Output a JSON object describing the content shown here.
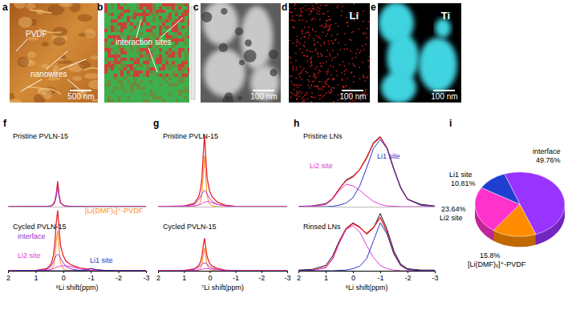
{
  "image_panels": [
    {
      "label": "a",
      "annotations": [
        "PVDF",
        "nanowires"
      ],
      "scale_bar": "500 nm"
    },
    {
      "label": "b",
      "annotations": [
        "interaction sites"
      ]
    },
    {
      "label": "c",
      "scale_bar": "100 nm"
    },
    {
      "label": "d",
      "element": "Li",
      "scale_bar": "100 nm"
    },
    {
      "label": "e",
      "element": "Ti",
      "scale_bar": "100 nm"
    }
  ],
  "chart_data": [
    {
      "type": "line",
      "panel_label": "f",
      "title": "Pristine PVLN-15",
      "tick_labels": false,
      "xlim": [
        2,
        -3
      ],
      "ylim": [
        0,
        100
      ],
      "x": [
        2,
        1,
        0.6,
        0.45,
        0.4,
        0.35,
        0.3,
        0.25,
        0.2,
        0.15,
        0.1,
        0,
        -0.1,
        -0.3,
        -0.6,
        -0.9,
        -1,
        -1.2,
        -1.5,
        -2,
        -3
      ],
      "series": [
        {
          "color": "#e8202a",
          "values": [
            0,
            0.3,
            0.5,
            1,
            2,
            4,
            8,
            18,
            34,
            16,
            6,
            2,
            1,
            0.5,
            0.3,
            0.2,
            0.2,
            0.2,
            0.1,
            0,
            0
          ]
        },
        {
          "color": "#9b2fc9",
          "values": [
            0,
            0.2,
            0.4,
            0.8,
            1.5,
            3,
            6,
            14,
            28,
            13,
            5,
            1.5,
            0.8,
            0.4,
            0.2,
            0.1,
            0.1,
            0.1,
            0,
            0,
            0
          ]
        }
      ]
    },
    {
      "type": "line",
      "title": "Cycled PVLN-15",
      "x_label": "⁶Li shift(ppm)",
      "tick_labels": "x",
      "xlim": [
        2,
        -3
      ],
      "xticks": [
        2,
        1,
        0,
        -1,
        -2,
        -3
      ],
      "ylim": [
        0,
        100
      ],
      "x": [
        2,
        1,
        0.6,
        0.45,
        0.4,
        0.35,
        0.3,
        0.25,
        0.2,
        0.15,
        0.1,
        0,
        -0.1,
        -0.3,
        -0.6,
        -0.9,
        -1,
        -1.2,
        -1.5,
        -2,
        -3
      ],
      "series": [
        {
          "color": "#e8202a",
          "values": [
            0,
            0.3,
            3,
            9.5,
            15.5,
            24,
            43,
            73,
            91,
            64.5,
            38,
            22.5,
            14.5,
            8.5,
            4,
            2.5,
            3.5,
            1.5,
            0.5,
            0,
            0
          ]
        },
        {
          "name": "[Li(DMF)ₓ]⁺-PVDF",
          "color": "#ff8c1a",
          "values": [
            0,
            0,
            0.5,
            1.5,
            3,
            7,
            20,
            45,
            60,
            35,
            12,
            3,
            1,
            0,
            0,
            0,
            0,
            0,
            0,
            0,
            0
          ]
        },
        {
          "name": "interface",
          "color": "#9b2fc9",
          "values": [
            0,
            0.3,
            2,
            6,
            10,
            14,
            19,
            23,
            25,
            23,
            19,
            12,
            6,
            2.5,
            0.5,
            0,
            0,
            0,
            0,
            0,
            0
          ]
        },
        {
          "name": "Li2 site",
          "color": "#e23bd6",
          "values": [
            0,
            0,
            0.5,
            2,
            2.5,
            3,
            4,
            5,
            6,
            6.5,
            7,
            7.5,
            7.5,
            6,
            3,
            1,
            0.5,
            0,
            0,
            0,
            0
          ]
        },
        {
          "name": "Li1 site",
          "color": "#2b35c8",
          "values": [
            0,
            0,
            0,
            0,
            0,
            0,
            0,
            0,
            0,
            0,
            0,
            0,
            0,
            0,
            0.5,
            1.5,
            3,
            1.5,
            0.5,
            0,
            0
          ]
        }
      ]
    },
    {
      "type": "line",
      "panel_label": "g",
      "title": "Pristine PVLN-15",
      "tick_labels": false,
      "xlim": [
        2,
        -3
      ],
      "ylim": [
        0,
        100
      ],
      "x": [
        2,
        1,
        0.6,
        0.45,
        0.4,
        0.35,
        0.3,
        0.25,
        0.2,
        0.15,
        0.1,
        0,
        -0.1,
        -0.3,
        -0.6,
        -0.9,
        -1,
        -1.5,
        -2,
        -3
      ],
      "series": [
        {
          "color": "#e8202a",
          "values": [
            0,
            0.8,
            4.5,
            12,
            16.5,
            24,
            39,
            70,
            96,
            64.5,
            38,
            20.5,
            13,
            6,
            2,
            0.8,
            0,
            0,
            0,
            0
          ]
        },
        {
          "color": "#ff8c1a",
          "values": [
            0,
            0,
            0.5,
            2,
            3,
            7,
            18,
            45,
            68,
            38,
            14,
            3,
            1,
            0,
            0,
            0,
            0,
            0,
            0,
            0
          ]
        },
        {
          "color": "#9b2fc9",
          "values": [
            0,
            0.5,
            3,
            8,
            11,
            14,
            17,
            20,
            22,
            20,
            17,
            11,
            7,
            3,
            1,
            0.5,
            0,
            0,
            0,
            0
          ]
        },
        {
          "color": "#e23bd6",
          "values": [
            0,
            0.3,
            1,
            2,
            2.5,
            3,
            4,
            5,
            6,
            6.5,
            7,
            6.5,
            5,
            3,
            1,
            0.3,
            0,
            0,
            0,
            0
          ]
        }
      ]
    },
    {
      "type": "line",
      "title": "Cycled PVLN-15",
      "x_label": "⁷Li shift(ppm)",
      "tick_labels": "x",
      "xlim": [
        2,
        -3
      ],
      "xticks": [
        2,
        1,
        0,
        -1,
        -2,
        -3
      ],
      "ylim": [
        0,
        100
      ],
      "x": [
        2,
        1,
        0.6,
        0.45,
        0.4,
        0.35,
        0.3,
        0.25,
        0.2,
        0.15,
        0.1,
        0,
        -0.1,
        -0.3,
        -0.6,
        -0.9,
        -1,
        -1.5,
        -2,
        -3
      ],
      "series": [
        {
          "color": "#e8202a",
          "values": [
            0,
            0.3,
            2.8,
            7,
            9.5,
            14,
            22,
            37.5,
            49,
            34,
            21,
            11,
            7,
            3.5,
            1,
            0,
            0,
            0,
            0,
            0
          ]
        },
        {
          "color": "#ff8c1a",
          "values": [
            0,
            0,
            0.3,
            1,
            2,
            4,
            10,
            24,
            34,
            20,
            8,
            2,
            0.5,
            0,
            0,
            0,
            0,
            0,
            0,
            0
          ]
        },
        {
          "color": "#9b2fc9",
          "values": [
            0,
            0.3,
            2,
            5,
            6,
            8,
            10,
            11,
            12,
            11,
            10,
            6,
            4,
            2,
            0.5,
            0,
            0,
            0,
            0,
            0
          ]
        },
        {
          "color": "#e23bd6",
          "values": [
            0,
            0,
            0.5,
            1,
            1.5,
            2,
            2,
            2.5,
            3,
            3,
            3,
            3,
            2.5,
            1.5,
            0.5,
            0,
            0,
            0,
            0,
            0
          ]
        }
      ]
    },
    {
      "type": "line",
      "panel_label": "h",
      "title": "Pristine LNs",
      "tick_labels": false,
      "xlim": [
        2,
        -3
      ],
      "ylim": [
        0,
        100
      ],
      "x": [
        2,
        1.5,
        1,
        0.75,
        0.5,
        0.25,
        0,
        -0.25,
        -0.5,
        -0.75,
        -1,
        -1.25,
        -1.5,
        -1.75,
        -2,
        -2.5,
        -3
      ],
      "series": [
        {
          "color": "#111111",
          "values": [
            0.5,
            1,
            4,
            11,
            24,
            36,
            41,
            50,
            65,
            86,
            94,
            78,
            50,
            26,
            10,
            3,
            1
          ]
        },
        {
          "color": "#e8202a",
          "values": [
            0,
            0.5,
            3,
            10.5,
            24,
            35,
            40,
            50,
            66,
            85,
            93,
            79,
            50.5,
            25,
            10,
            2,
            0
          ]
        },
        {
          "name": "Li1 site",
          "color": "#2b35c8",
          "values": [
            0,
            0,
            0,
            0.5,
            2,
            5,
            12,
            28,
            52,
            78,
            90,
            78,
            50,
            25,
            10,
            2,
            0
          ]
        },
        {
          "name": "Li2 site",
          "color": "#e23bd6",
          "values": [
            0,
            0.5,
            3,
            10,
            22,
            30,
            28,
            22,
            14,
            7,
            3,
            1,
            0.5,
            0,
            0,
            0,
            0
          ]
        }
      ]
    },
    {
      "type": "line",
      "title": "Rinsed LNs",
      "x_label": "⁶Li shift(ppm)",
      "tick_labels": "x",
      "xlim": [
        2,
        -3
      ],
      "xticks": [
        2,
        1,
        0,
        -1,
        -2,
        -3
      ],
      "ylim": [
        0,
        100
      ],
      "x": [
        2,
        1.5,
        1,
        0.75,
        0.5,
        0.25,
        0,
        -0.25,
        -0.5,
        -0.75,
        -1,
        -1.25,
        -1.5,
        -1.75,
        -2,
        -2.5,
        -3
      ],
      "series": [
        {
          "color": "#111111",
          "values": [
            1,
            2,
            8,
            22,
            45,
            64,
            72,
            66,
            55,
            64,
            86,
            62,
            30,
            10,
            3,
            1,
            1
          ]
        },
        {
          "color": "#e8202a",
          "values": [
            0,
            0.5,
            5,
            18,
            42.5,
            63,
            71,
            65,
            56,
            65,
            80,
            58,
            26,
            8,
            2,
            0,
            0
          ]
        },
        {
          "color": "#e23bd6",
          "values": [
            0,
            0.5,
            5,
            18,
            42,
            62,
            68,
            58,
            38,
            20,
            8,
            3,
            1,
            0,
            0,
            0,
            0
          ]
        },
        {
          "color": "#2b35c8",
          "values": [
            0,
            0,
            0,
            0,
            0.5,
            1,
            3,
            7,
            18,
            45,
            72,
            55,
            25,
            8,
            2,
            0,
            0
          ]
        }
      ]
    },
    {
      "type": "pie",
      "panel_label": "i",
      "categories": [
        "interface",
        "[Li(DMF)ₓ]⁺-PVDF",
        "Li2 site",
        "Li1 site"
      ],
      "values": [
        49.76,
        15.8,
        23.64,
        10.81
      ],
      "value_labels": [
        "49.76%",
        "15.8%",
        "23.64%",
        "10.81%"
      ],
      "colors": [
        "#9933ff",
        "#ff8c00",
        "#ff33cc",
        "#1f3fd0"
      ]
    }
  ]
}
